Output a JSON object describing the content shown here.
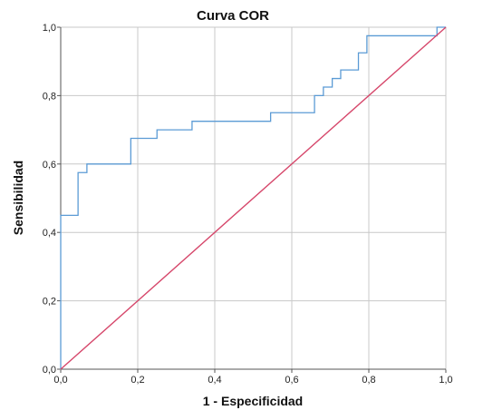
{
  "chart_data": {
    "type": "line",
    "title": "Curva COR",
    "xlabel": "1 - Especificidad",
    "ylabel": "Sensibilidad",
    "xlim": [
      0,
      1
    ],
    "ylim": [
      0,
      1
    ],
    "x_ticks": [
      "0,0",
      "0,2",
      "0,4",
      "0,6",
      "0,8",
      "1,0"
    ],
    "y_ticks": [
      "0,0",
      "0,2",
      "0,4",
      "0,6",
      "0,8",
      "1,0"
    ],
    "grid": true,
    "series": [
      {
        "color": "#5b9bd5",
        "step": true,
        "points": [
          [
            0.0,
            0.0
          ],
          [
            0.0,
            0.45
          ],
          [
            0.045,
            0.45
          ],
          [
            0.045,
            0.575
          ],
          [
            0.068,
            0.575
          ],
          [
            0.068,
            0.6
          ],
          [
            0.182,
            0.6
          ],
          [
            0.182,
            0.675
          ],
          [
            0.25,
            0.675
          ],
          [
            0.25,
            0.7
          ],
          [
            0.341,
            0.7
          ],
          [
            0.341,
            0.725
          ],
          [
            0.545,
            0.725
          ],
          [
            0.545,
            0.75
          ],
          [
            0.659,
            0.75
          ],
          [
            0.659,
            0.8
          ],
          [
            0.682,
            0.8
          ],
          [
            0.682,
            0.825
          ],
          [
            0.705,
            0.825
          ],
          [
            0.705,
            0.85
          ],
          [
            0.727,
            0.85
          ],
          [
            0.727,
            0.875
          ],
          [
            0.773,
            0.875
          ],
          [
            0.773,
            0.925
          ],
          [
            0.795,
            0.925
          ],
          [
            0.795,
            0.975
          ],
          [
            0.977,
            0.975
          ],
          [
            0.977,
            1.0
          ],
          [
            1.0,
            1.0
          ]
        ]
      },
      {
        "color": "#d6476b",
        "points": [
          [
            0.0,
            0.0
          ],
          [
            1.0,
            1.0
          ]
        ]
      }
    ]
  },
  "colors": {
    "grid": "#c8c8c8",
    "axis": "#555555",
    "roc_curve": "#5b9bd5",
    "reference_line": "#d6476b"
  }
}
